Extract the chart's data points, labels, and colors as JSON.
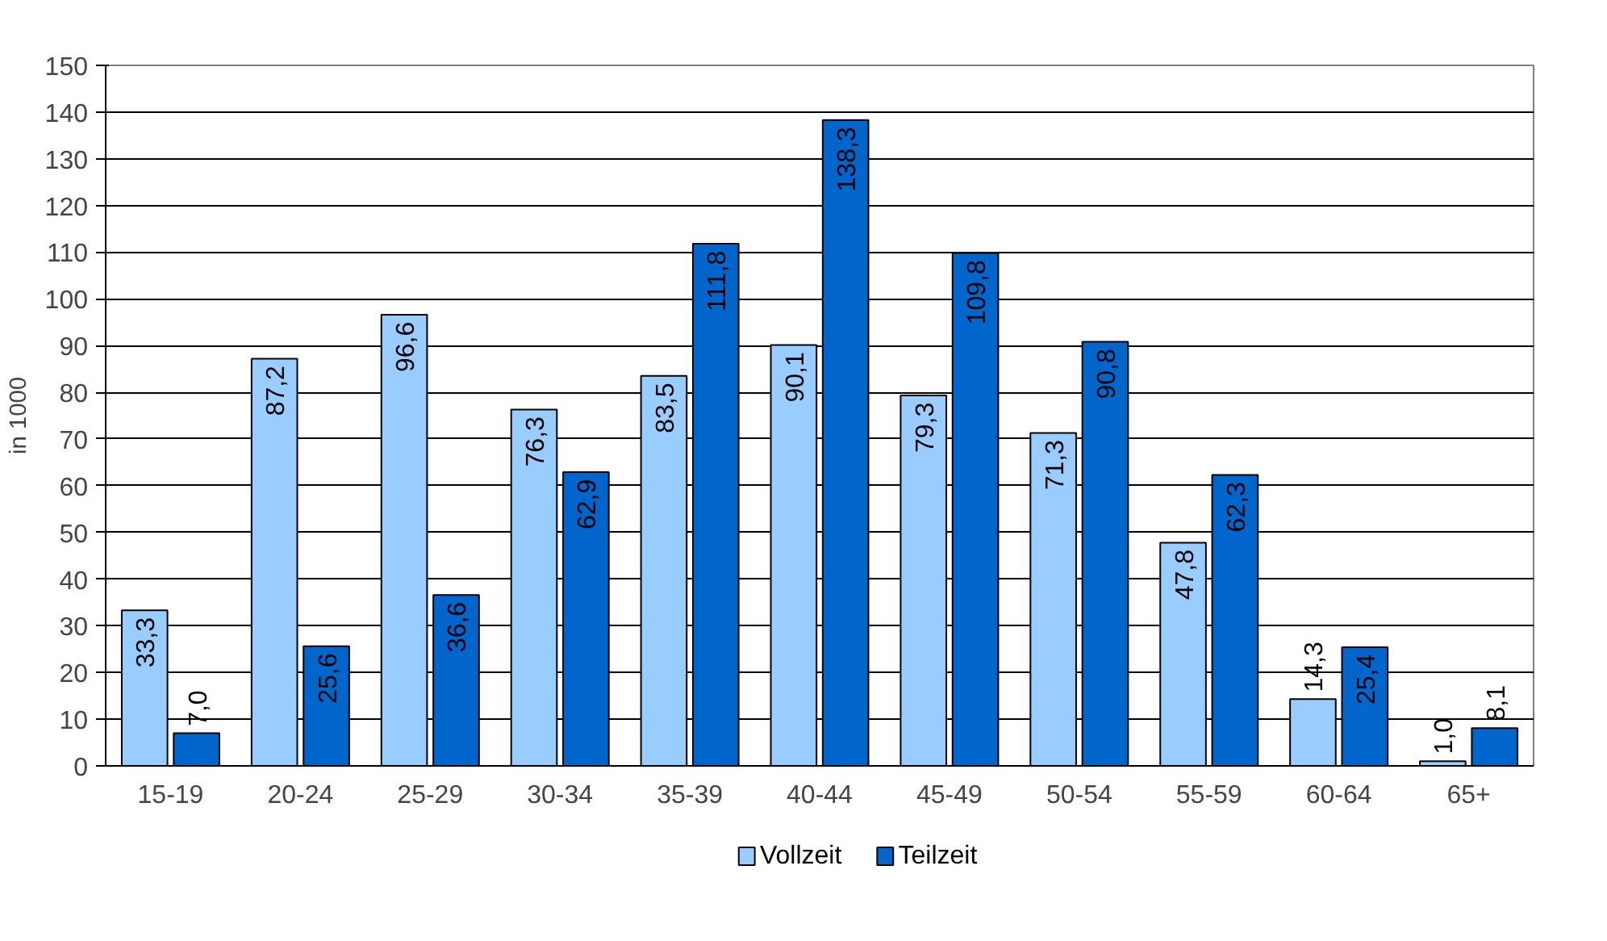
{
  "chart_data": {
    "type": "bar",
    "ylabel": "in 1000",
    "categories": [
      "15-19",
      "20-24",
      "25-29",
      "30-34",
      "35-39",
      "40-44",
      "45-49",
      "50-54",
      "55-59",
      "60-64",
      "65+"
    ],
    "series": [
      {
        "name": "Vollzeit",
        "color": "#99ccff",
        "values": [
          33.3,
          87.2,
          96.6,
          76.3,
          83.5,
          90.1,
          79.3,
          71.3,
          47.8,
          14.3,
          1.0
        ],
        "value_labels": [
          "33,3",
          "87,2",
          "96,6",
          "76,3",
          "83,5",
          "90,1",
          "79,3",
          "71,3",
          "47,8",
          "14,3",
          "1,0"
        ]
      },
      {
        "name": "Teilzeit",
        "color": "#0066cc",
        "values": [
          7.0,
          25.6,
          36.6,
          62.9,
          111.8,
          138.3,
          109.8,
          90.8,
          62.3,
          25.4,
          8.1
        ],
        "value_labels": [
          "7,0",
          "25,6",
          "36,6",
          "62,9",
          "111,8",
          "138,3",
          "109,8",
          "90,8",
          "62,3",
          "25,4",
          "8,1"
        ]
      }
    ],
    "ylim": [
      0,
      150
    ],
    "yticks": [
      0,
      10,
      20,
      30,
      40,
      50,
      60,
      70,
      80,
      90,
      100,
      110,
      120,
      130,
      140,
      150
    ],
    "grid": "y",
    "legend": "bottom"
  }
}
